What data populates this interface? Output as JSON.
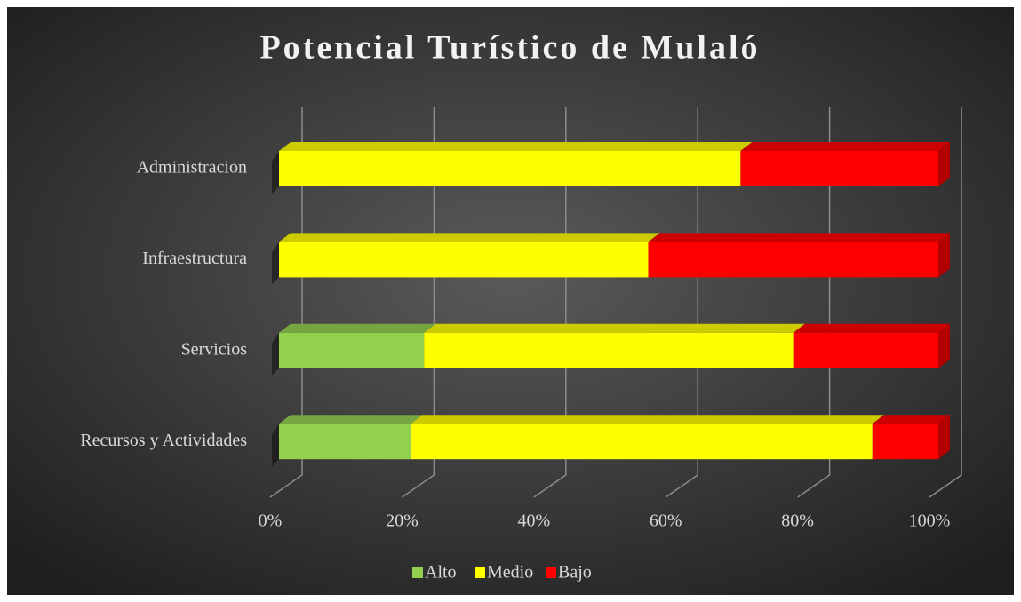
{
  "chart_data": {
    "type": "bar",
    "orientation": "horizontal",
    "stacked": true,
    "title": "Potencial Turístico de Mulaló",
    "categories": [
      "Administracion",
      "Infraestructura",
      "Servicios",
      "Recursos y Actividades"
    ],
    "series": [
      {
        "name": "Alto",
        "color": "#92d050",
        "values": [
          0,
          0,
          22,
          20
        ]
      },
      {
        "name": "Medio",
        "color": "#ffff00",
        "values": [
          70,
          56,
          56,
          70
        ]
      },
      {
        "name": "Bajo",
        "color": "#ff0000",
        "values": [
          30,
          44,
          22,
          10
        ]
      }
    ],
    "xlim": [
      0,
      100
    ],
    "xticks": [
      {
        "value": 0,
        "label": "0%"
      },
      {
        "value": 20,
        "label": "20%"
      },
      {
        "value": 40,
        "label": "40%"
      },
      {
        "value": 60,
        "label": "60%"
      },
      {
        "value": 80,
        "label": "80%"
      },
      {
        "value": 100,
        "label": "100%"
      }
    ],
    "grid": true,
    "legend": "bottom"
  }
}
